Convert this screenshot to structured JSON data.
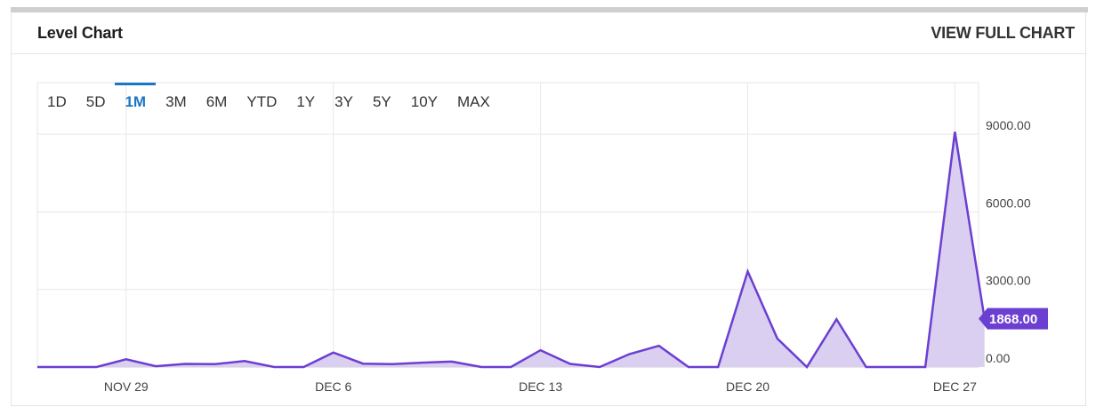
{
  "header": {
    "title": "Level Chart",
    "view_full_label": "VIEW FULL CHART"
  },
  "ranges": [
    {
      "label": "1D",
      "active": false
    },
    {
      "label": "5D",
      "active": false
    },
    {
      "label": "1M",
      "active": true
    },
    {
      "label": "3M",
      "active": false
    },
    {
      "label": "6M",
      "active": false
    },
    {
      "label": "YTD",
      "active": false
    },
    {
      "label": "1Y",
      "active": false
    },
    {
      "label": "3Y",
      "active": false
    },
    {
      "label": "5Y",
      "active": false
    },
    {
      "label": "10Y",
      "active": false
    },
    {
      "label": "MAX",
      "active": false
    }
  ],
  "colors": {
    "line": "#6b3fd1",
    "fill": "#d8ccef",
    "accent": "#1a76c8",
    "badge": "#6b3fd1"
  },
  "chart_data": {
    "type": "area",
    "title": "Level Chart",
    "x_tick_labels": [
      "NOV 29",
      "DEC 6",
      "DEC 13",
      "DEC 20",
      "DEC 27"
    ],
    "x_tick_days": [
      3,
      10,
      17,
      24,
      31
    ],
    "y_tick_labels": [
      "9000.00",
      "6000.00",
      "3000.00",
      "0.00"
    ],
    "y_tick_values": [
      9000,
      6000,
      3000,
      0
    ],
    "ylim": [
      0,
      11000
    ],
    "xlim": [
      0,
      31.8
    ],
    "last_value_label": "1868.00",
    "grid": true,
    "series": [
      {
        "x": [
          0,
          1,
          2,
          3,
          4,
          5,
          6,
          7,
          8,
          9,
          10,
          11,
          12,
          13,
          14,
          15,
          16,
          17,
          18,
          19,
          20,
          21,
          22,
          23,
          24,
          25,
          26,
          27,
          28,
          29,
          30,
          31,
          32
        ],
        "values": [
          0,
          0,
          0,
          300,
          30,
          120,
          110,
          230,
          0,
          0,
          560,
          130,
          110,
          170,
          210,
          0,
          0,
          650,
          120,
          0,
          500,
          820,
          0,
          0,
          3700,
          1100,
          0,
          1850,
          0,
          0,
          0,
          9100,
          1868
        ]
      }
    ]
  }
}
